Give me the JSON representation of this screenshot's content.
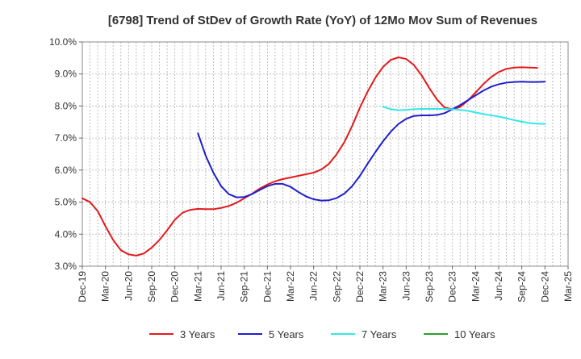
{
  "chart_data": {
    "type": "line",
    "title": "[6798]  Trend of StDev of Growth Rate (YoY) of 12Mo Mov Sum of Revenues",
    "xlabel": "",
    "ylabel": "",
    "ylim": [
      3.0,
      10.0
    ],
    "y_ticks": [
      "10.0%",
      "9.0%",
      "8.0%",
      "7.0%",
      "6.0%",
      "5.0%",
      "4.0%",
      "3.0%"
    ],
    "y_tick_values": [
      10,
      9,
      8,
      7,
      6,
      5,
      4,
      3
    ],
    "x_tick_labels": [
      "Dec-19",
      "Mar-20",
      "Jun-20",
      "Sep-20",
      "Dec-20",
      "Mar-21",
      "Jun-21",
      "Sep-21",
      "Dec-21",
      "Mar-22",
      "Jun-22",
      "Sep-22",
      "Dec-22",
      "Mar-23",
      "Jun-23",
      "Sep-23",
      "Dec-23",
      "Mar-24",
      "Jun-24",
      "Sep-24",
      "Dec-24",
      "Mar-25"
    ],
    "x_start": "Dec-19",
    "x_months_total": 63,
    "grid": true,
    "legend_position": "bottom",
    "series": [
      {
        "name": "3 Years",
        "color": "#e31a1c",
        "start_month_index": 0,
        "values": [
          5.12,
          5.0,
          4.72,
          4.25,
          3.82,
          3.5,
          3.37,
          3.33,
          3.4,
          3.58,
          3.82,
          4.12,
          4.45,
          4.67,
          4.76,
          4.79,
          4.78,
          4.78,
          4.82,
          4.88,
          4.98,
          5.12,
          5.26,
          5.42,
          5.55,
          5.65,
          5.72,
          5.77,
          5.82,
          5.87,
          5.92,
          6.02,
          6.2,
          6.5,
          6.88,
          7.38,
          7.95,
          8.45,
          8.88,
          9.22,
          9.44,
          9.52,
          9.47,
          9.28,
          8.96,
          8.56,
          8.2,
          7.95,
          7.9,
          7.97,
          8.17,
          8.42,
          8.68,
          8.9,
          9.06,
          9.16,
          9.2,
          9.21,
          9.2,
          9.19
        ]
      },
      {
        "name": "5 Years",
        "color": "#1f1fcf",
        "start_month_index": 15,
        "values": [
          7.15,
          6.45,
          5.92,
          5.5,
          5.25,
          5.15,
          5.16,
          5.25,
          5.38,
          5.5,
          5.57,
          5.57,
          5.48,
          5.32,
          5.18,
          5.09,
          5.05,
          5.06,
          5.13,
          5.27,
          5.5,
          5.82,
          6.2,
          6.56,
          6.9,
          7.2,
          7.44,
          7.6,
          7.69,
          7.71,
          7.71,
          7.72,
          7.78,
          7.9,
          8.03,
          8.18,
          8.33,
          8.48,
          8.6,
          8.68,
          8.73,
          8.75,
          8.76,
          8.75,
          8.75,
          8.76
        ]
      },
      {
        "name": "7 Years",
        "color": "#33e8e8",
        "start_month_index": 39,
        "values": [
          7.98,
          7.9,
          7.87,
          7.88,
          7.9,
          7.91,
          7.91,
          7.91,
          7.91,
          7.9,
          7.88,
          7.85,
          7.8,
          7.75,
          7.71,
          7.67,
          7.62,
          7.56,
          7.51,
          7.47,
          7.45,
          7.44
        ]
      },
      {
        "name": "10 Years",
        "color": "#2ca02c",
        "start_month_index": 0,
        "values": []
      }
    ]
  }
}
